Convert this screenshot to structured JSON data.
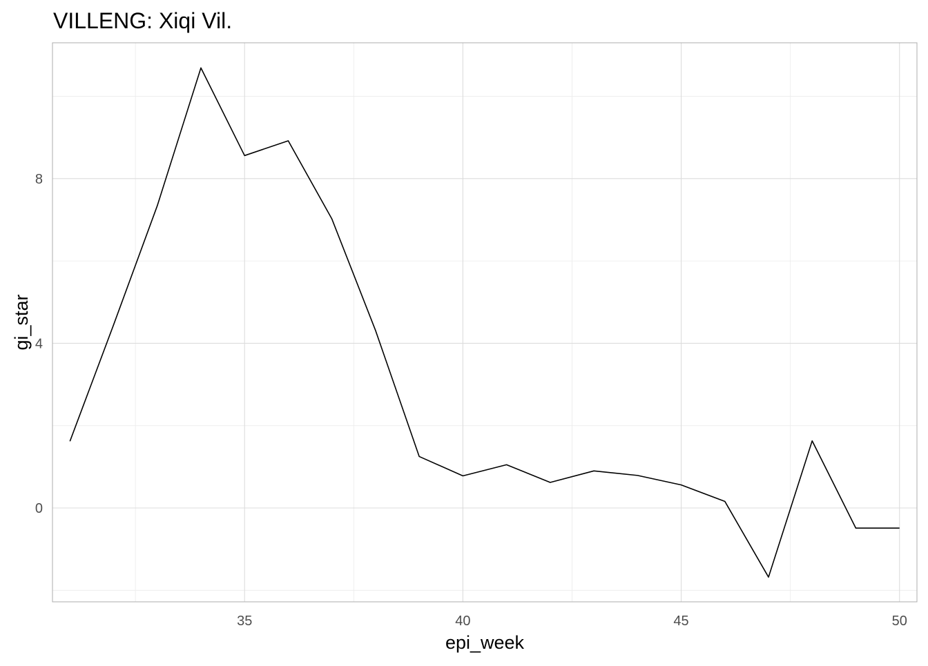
{
  "chart_data": {
    "type": "line",
    "title": "VILLENG: Xiqi Vil.",
    "xlabel": "epi_week",
    "ylabel": "gi_star",
    "x": [
      31,
      32,
      33,
      34,
      35,
      36,
      37,
      38,
      39,
      40,
      41,
      42,
      43,
      44,
      45,
      46,
      47,
      48,
      49,
      50
    ],
    "series": [
      {
        "values": [
          1.62,
          4.45,
          7.34,
          10.69,
          8.56,
          8.92,
          7.02,
          4.31,
          1.25,
          0.78,
          1.05,
          0.62,
          0.9,
          0.79,
          0.56,
          0.16,
          -1.68,
          1.63,
          -0.49,
          -0.49
        ]
      }
    ],
    "xlim": [
      30.6,
      50.4
    ],
    "ylim": [
      -2.28,
      11.3
    ],
    "xticks": [
      35,
      40,
      45,
      50
    ],
    "xtick_labels": [
      "35",
      "40",
      "45",
      "50"
    ],
    "xminor": [
      32.5,
      37.5,
      42.5,
      47.5
    ],
    "yticks": [
      0,
      4,
      8
    ],
    "ytick_labels": [
      "0",
      "4",
      "8"
    ],
    "yminor": [
      -2,
      2,
      6,
      10
    ],
    "grid": true,
    "legend": "none",
    "line_color": "#000000"
  }
}
